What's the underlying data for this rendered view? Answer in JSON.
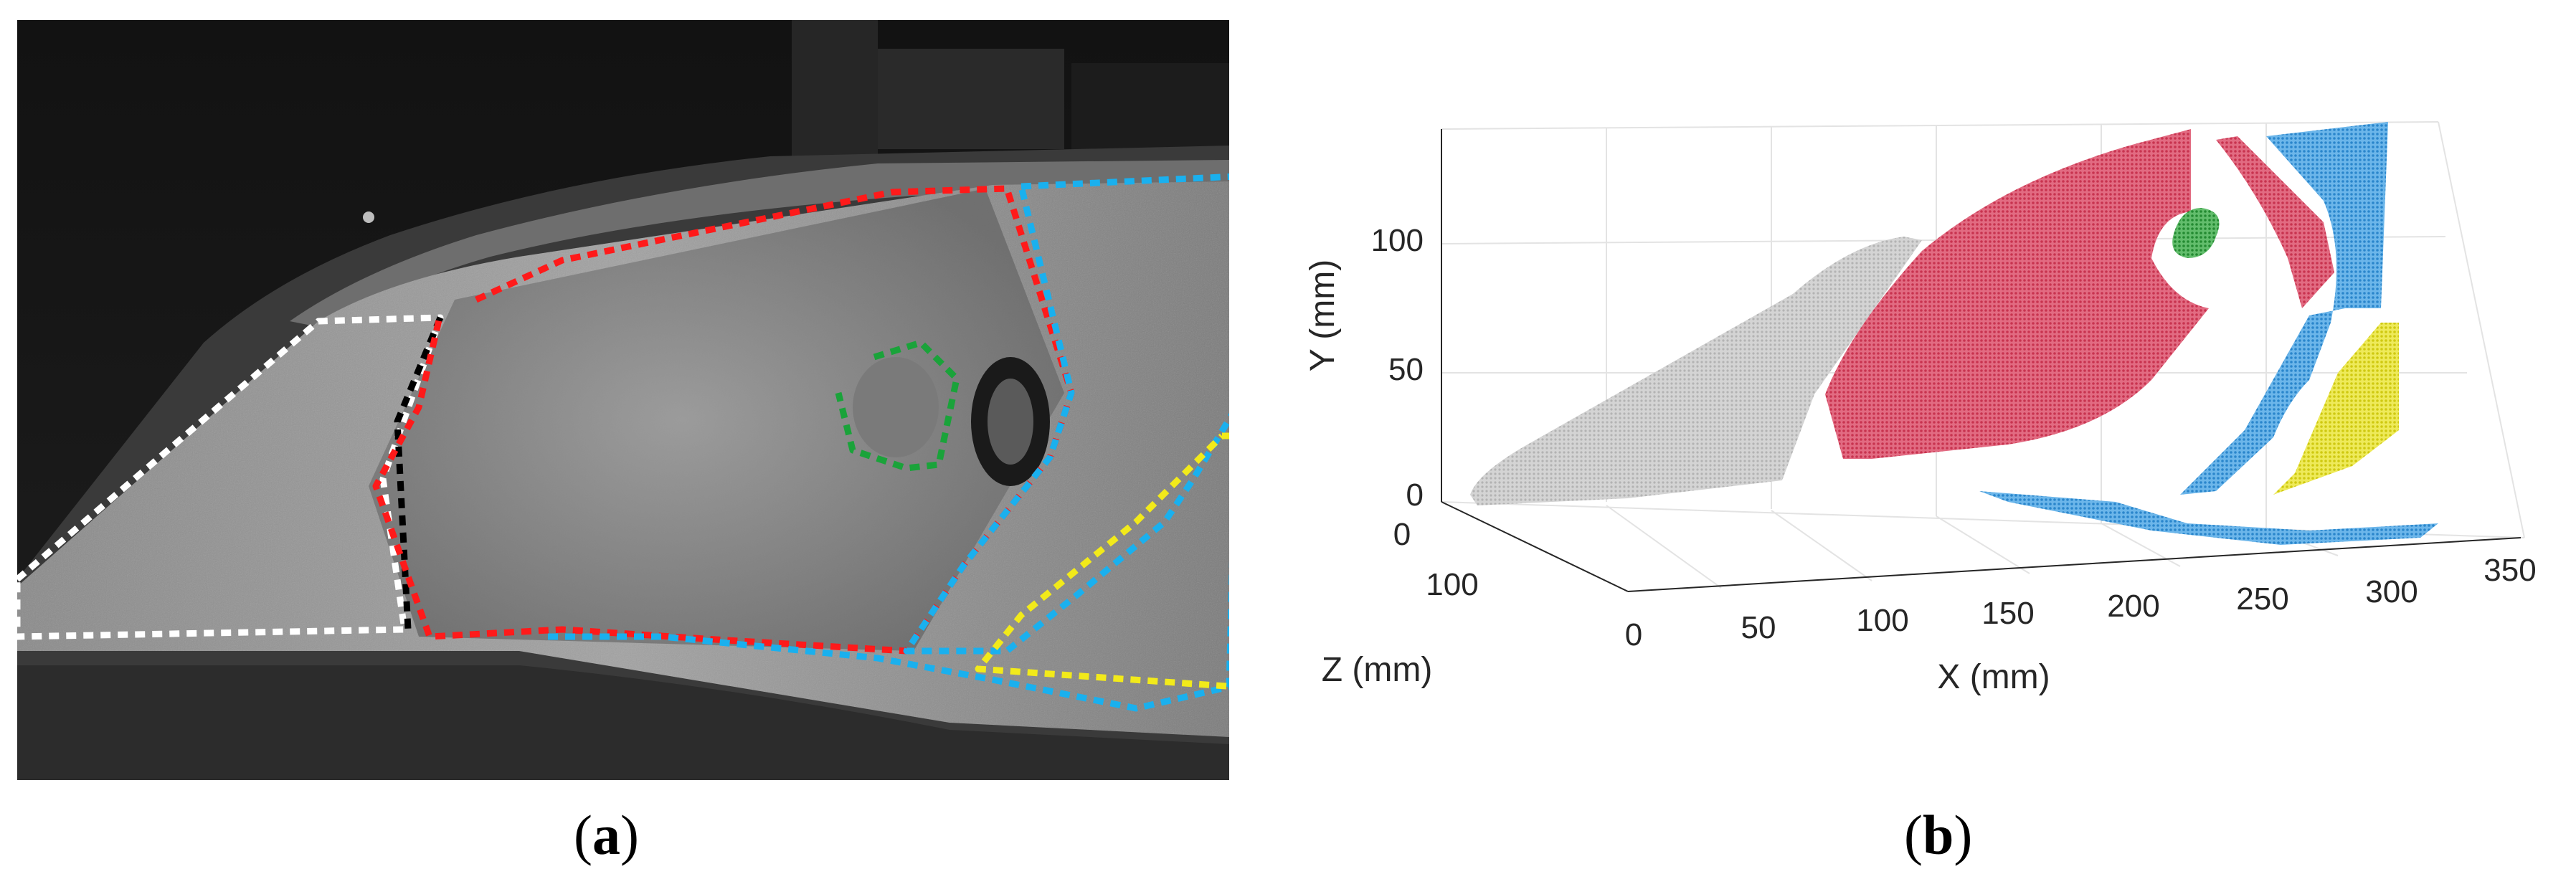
{
  "figure": {
    "caption_a": "a",
    "caption_b": "b"
  },
  "panel_a": {
    "regions": [
      {
        "name": "white-region",
        "color": "#ffffff"
      },
      {
        "name": "red-region",
        "color": "#ff1a1a"
      },
      {
        "name": "black-region",
        "color": "#000000"
      },
      {
        "name": "green-region",
        "color": "#1aa33a"
      },
      {
        "name": "blue-region",
        "color": "#1ab0ee"
      },
      {
        "name": "yellow-region",
        "color": "#f2ea1a"
      }
    ]
  },
  "chart_data": {
    "type": "scatter",
    "projection": "3d",
    "x": {
      "label": "X (mm)",
      "ticks": [
        "0",
        "50",
        "100",
        "150",
        "200",
        "250",
        "300",
        "350"
      ],
      "range": [
        0,
        350
      ]
    },
    "y": {
      "label": "Y (mm)",
      "ticks": [
        "0",
        "50",
        "100"
      ],
      "range": [
        0,
        140
      ]
    },
    "z": {
      "label": "Z (mm)",
      "ticks": [
        "0",
        "100"
      ],
      "range": [
        0,
        150
      ]
    },
    "grid": true,
    "series_colors": {
      "gray": "#c8c8c8",
      "red": "#d9435f",
      "green": "#2e9c3e",
      "blue": "#3c9be0",
      "yellow": "#e3de1c"
    }
  }
}
